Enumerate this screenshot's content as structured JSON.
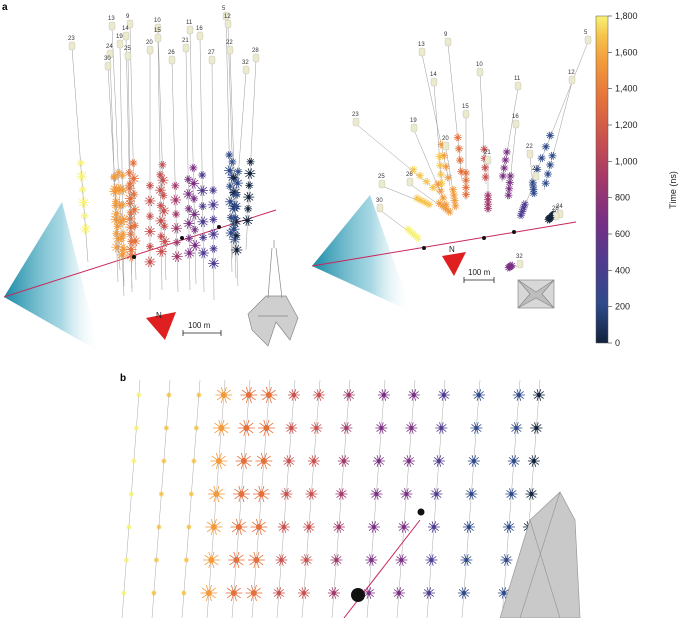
{
  "panels": {
    "a": "a",
    "b": "b"
  },
  "colorbar": {
    "label": "Time (ns)",
    "ticks": [
      "1,800",
      "1,600",
      "1,400",
      "1,200",
      "1,000",
      "800",
      "600",
      "400",
      "200",
      "0"
    ],
    "colors": [
      "#f7f274",
      "#f6c44a",
      "#f29a3c",
      "#e4703c",
      "#c8504f",
      "#a2396a",
      "#7a2f83",
      "#4f3b8f",
      "#2f4a8a",
      "#12233d"
    ]
  },
  "scalebars": {
    "left": "100 m",
    "right": "100 m"
  },
  "compass": {
    "left": "N",
    "right": "N"
  },
  "left_view": {
    "strings": [
      {
        "id": "23"
      },
      {
        "id": "13"
      },
      {
        "id": "9"
      },
      {
        "id": "14"
      },
      {
        "id": "10"
      },
      {
        "id": "15"
      },
      {
        "id": "20"
      },
      {
        "id": "11"
      },
      {
        "id": "16"
      },
      {
        "id": "5"
      },
      {
        "id": "12"
      },
      {
        "id": "22"
      },
      {
        "id": "24"
      },
      {
        "id": "19"
      },
      {
        "id": "30"
      },
      {
        "id": "25"
      },
      {
        "id": "26"
      },
      {
        "id": "21"
      },
      {
        "id": "27"
      },
      {
        "id": "28"
      },
      {
        "id": "32"
      }
    ]
  },
  "right_view": {
    "strings": [
      {
        "id": "13"
      },
      {
        "id": "9"
      },
      {
        "id": "5"
      },
      {
        "id": "10"
      },
      {
        "id": "12"
      },
      {
        "id": "14"
      },
      {
        "id": "11"
      },
      {
        "id": "15"
      },
      {
        "id": "23"
      },
      {
        "id": "19"
      },
      {
        "id": "16"
      },
      {
        "id": "20"
      },
      {
        "id": "21"
      },
      {
        "id": "24"
      },
      {
        "id": "22"
      },
      {
        "id": "25"
      },
      {
        "id": "26"
      },
      {
        "id": "27"
      },
      {
        "id": "30"
      },
      {
        "id": "28"
      },
      {
        "id": "32"
      }
    ]
  }
}
